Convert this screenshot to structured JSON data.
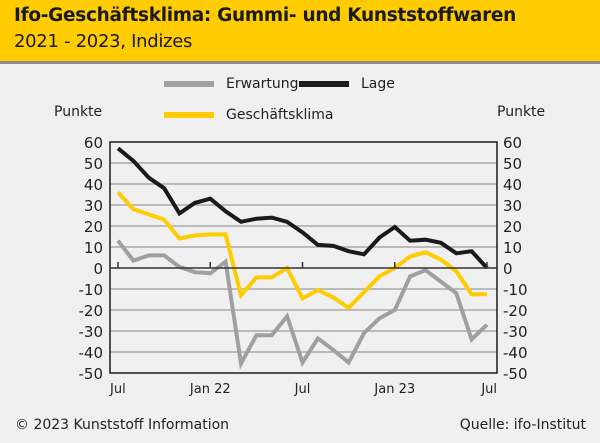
{
  "header": {
    "title": "Ifo-Geschäftsklima: Gummi- und Kunststoffwaren",
    "subtitle": "2021 - 2023, Indizes"
  },
  "footer": {
    "copyright": "© 2023 Kunststoff Information",
    "source": "Quelle: ifo-Institut"
  },
  "colors": {
    "header_bg": "#fecc00",
    "erwartung": "#a0a0a0",
    "lage": "#1a1a1a",
    "geschaeftsklima": "#fecc00"
  },
  "chart_data": {
    "type": "line",
    "title": "Ifo-Geschäftsklima: Gummi- und Kunststoffwaren",
    "subtitle": "2021 - 2023, Indizes",
    "ylabel_left": "Punkte",
    "ylabel_right": "Punkte",
    "ylim": [
      -50,
      60
    ],
    "yticks": [
      60,
      50,
      40,
      30,
      20,
      10,
      0,
      -10,
      -20,
      -30,
      -40,
      -50
    ],
    "ytick_labels": [
      "60",
      "50",
      "40",
      "30",
      "20",
      "10",
      "0",
      "-10",
      "-20",
      "-30",
      "-40",
      "-50"
    ],
    "xtick_labels": [
      {
        "label": "Jul",
        "index": 0
      },
      {
        "label": "Jan 22",
        "index": 6
      },
      {
        "label": "Jul",
        "index": 12
      },
      {
        "label": "Jan 23",
        "index": 18
      },
      {
        "label": "Jul",
        "index": 24
      }
    ],
    "x": [
      "Jul 21",
      "Aug 21",
      "Sep 21",
      "Okt 21",
      "Nov 21",
      "Dez 21",
      "Jan 22",
      "Feb 22",
      "Mär 22",
      "Apr 22",
      "Mai 22",
      "Jun 22",
      "Jul 22",
      "Aug 22",
      "Sep 22",
      "Okt 22",
      "Nov 22",
      "Dez 22",
      "Jan 23",
      "Feb 23",
      "Mär 23",
      "Apr 23",
      "Mai 23",
      "Jun 23",
      "Jul 23"
    ],
    "grid": true,
    "legend_position": "top-center",
    "series": [
      {
        "name": "Erwartung",
        "color": "#a0a0a0",
        "values": [
          13,
          3.5,
          6,
          6,
          0.5,
          -2,
          -2.5,
          3,
          -45.5,
          -32,
          -32,
          -23,
          -45,
          -33.5,
          -39,
          -45,
          -31,
          -24,
          -20,
          -4,
          -1,
          -6.5,
          -12,
          -34,
          -27
        ]
      },
      {
        "name": "Lage",
        "color": "#1a1a1a",
        "values": [
          57,
          51,
          43,
          38,
          26,
          31,
          33,
          27,
          22,
          23.5,
          24,
          22,
          17,
          11,
          10.5,
          8,
          6.5,
          14.5,
          19.5,
          13,
          13.5,
          12,
          7,
          8,
          0
        ]
      },
      {
        "name": "Geschäftsklima",
        "color": "#fecc00",
        "values": [
          36,
          28,
          25.5,
          23,
          14,
          15.5,
          16,
          16,
          -13,
          -4.5,
          -4.5,
          0,
          -14.5,
          -10.5,
          -14,
          -19,
          -11.5,
          -4,
          0,
          5.5,
          7.5,
          4,
          -1.5,
          -12.5,
          -12.5
        ]
      }
    ]
  }
}
